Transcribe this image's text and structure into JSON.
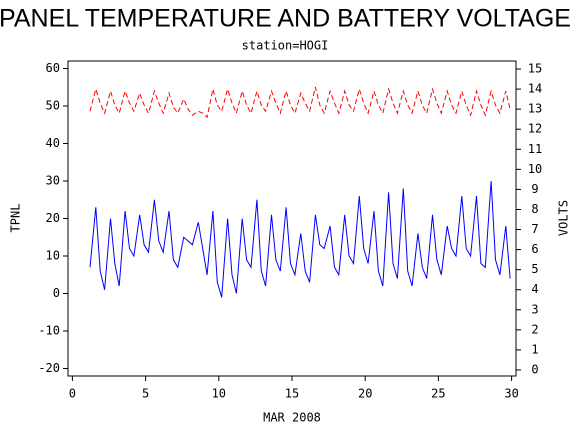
{
  "chart_data": {
    "type": "line",
    "title": "PANEL TEMPERATURE AND BATTERY VOLTAGE",
    "subtitle": "station=HOGI",
    "xlabel": "MAR 2008",
    "ylabel": "TPNL",
    "y2label": "VOLTS",
    "xlim": [
      -0.3,
      30.3
    ],
    "xticks": [
      0,
      5,
      10,
      15,
      20,
      25,
      30
    ],
    "ylim": [
      -22,
      62
    ],
    "yticks": [
      -20,
      -10,
      0,
      10,
      20,
      30,
      40,
      50,
      60
    ],
    "y2lim": [
      -0.3,
      15.4
    ],
    "y2ticks": [
      0,
      1,
      2,
      3,
      4,
      5,
      6,
      7,
      8,
      9,
      10,
      11,
      12,
      13,
      14,
      15
    ],
    "x": [
      1.2,
      1.6,
      1.9,
      2.2,
      2.6,
      2.9,
      3.2,
      3.6,
      3.9,
      4.2,
      4.6,
      4.9,
      5.2,
      5.6,
      5.9,
      6.2,
      6.6,
      6.9,
      7.2,
      7.6,
      7.9,
      8.2,
      8.6,
      8.9,
      9.2,
      9.6,
      9.9,
      10.2,
      10.6,
      10.9,
      11.2,
      11.6,
      11.9,
      12.2,
      12.6,
      12.9,
      13.2,
      13.6,
      13.9,
      14.2,
      14.6,
      14.9,
      15.2,
      15.6,
      15.9,
      16.2,
      16.6,
      16.9,
      17.2,
      17.6,
      17.9,
      18.2,
      18.6,
      18.9,
      19.2,
      19.6,
      19.9,
      20.2,
      20.6,
      20.9,
      21.2,
      21.6,
      21.9,
      22.2,
      22.6,
      22.9,
      23.2,
      23.6,
      23.9,
      24.2,
      24.6,
      24.9,
      25.2,
      25.6,
      25.9,
      26.2,
      26.6,
      26.9,
      27.2,
      27.6,
      27.9,
      28.2,
      28.6,
      28.9,
      29.2,
      29.6,
      29.9
    ],
    "series": [
      {
        "name": "TPNL",
        "color": "#0000ff",
        "axis": "y",
        "dashed": false,
        "values": [
          7,
          23,
          6,
          1,
          20,
          8,
          2,
          22,
          12,
          10,
          21,
          13,
          11,
          25,
          14,
          11,
          22,
          9,
          7,
          15,
          14,
          13,
          19,
          12,
          5,
          22,
          3,
          -1,
          20,
          5,
          0,
          20,
          9,
          7,
          25,
          6,
          2,
          21,
          9,
          6,
          23,
          8,
          5,
          16,
          6,
          3,
          21,
          13,
          12,
          18,
          7,
          5,
          21,
          10,
          8,
          26,
          12,
          8,
          22,
          6,
          2,
          27,
          8,
          4,
          28,
          6,
          2,
          16,
          7,
          4,
          21,
          9,
          5,
          18,
          12,
          10,
          26,
          12,
          10,
          26,
          8,
          7,
          30,
          9,
          5,
          18,
          4
        ]
      },
      {
        "name": "VOLTS",
        "color": "#ff0000",
        "axis": "y2",
        "dashed": true,
        "values": [
          12.9,
          14.0,
          13.3,
          12.8,
          13.9,
          13.2,
          12.8,
          13.9,
          13.3,
          12.9,
          13.8,
          13.2,
          12.8,
          13.9,
          13.3,
          12.8,
          13.8,
          13.1,
          12.8,
          13.5,
          13.0,
          12.7,
          12.9,
          12.8,
          12.6,
          14.0,
          13.2,
          12.9,
          14.0,
          13.3,
          12.8,
          13.9,
          13.2,
          12.8,
          13.9,
          13.2,
          12.9,
          13.9,
          13.3,
          12.8,
          13.9,
          13.2,
          12.8,
          13.8,
          13.3,
          12.9,
          14.1,
          13.2,
          12.8,
          13.9,
          13.3,
          12.8,
          13.9,
          13.2,
          12.9,
          14.0,
          13.3,
          12.8,
          13.9,
          13.2,
          12.8,
          14.0,
          13.3,
          12.8,
          13.9,
          13.2,
          12.8,
          13.9,
          13.2,
          12.8,
          14.0,
          13.3,
          12.8,
          13.9,
          13.2,
          12.8,
          13.9,
          13.2,
          12.7,
          13.9,
          13.2,
          12.7,
          13.9,
          13.2,
          12.8,
          13.9,
          13.0
        ]
      }
    ]
  }
}
